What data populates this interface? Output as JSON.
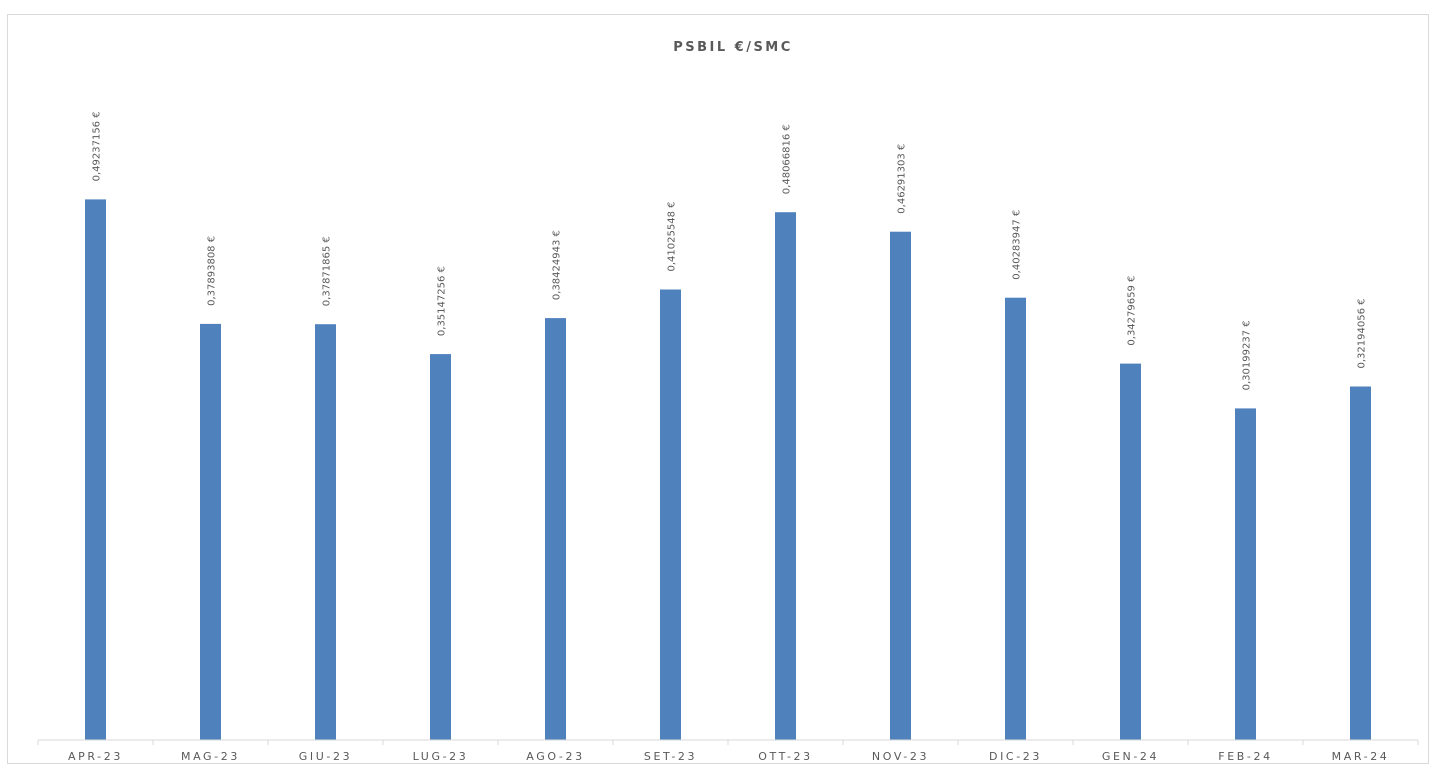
{
  "chart_data": {
    "type": "bar",
    "title": "PSBIL €/SMC",
    "xlabel": "",
    "ylabel": "",
    "categories": [
      "APR-23",
      "MAG-23",
      "GIU-23",
      "LUG-23",
      "AGO-23",
      "SET-23",
      "OTT-23",
      "NOV-23",
      "DIC-23",
      "GEN-24",
      "FEB-24",
      "MAR-24"
    ],
    "values": [
      0.49237156,
      0.37893808,
      0.37871865,
      0.35147256,
      0.38424943,
      0.41025548,
      0.48066816,
      0.46291303,
      0.40283947,
      0.34279659,
      0.30199237,
      0.32194056
    ],
    "data_labels": [
      "0,49237156 €",
      "0,37893808 €",
      "0,37871865 €",
      "0,35147256 €",
      "0,38424943 €",
      "0,41025548 €",
      "0,48066816 €",
      "0,46291303 €",
      "0,40283947 €",
      "0,34279659 €",
      "0,30199237 €",
      "0,32194056 €"
    ],
    "ylim": [
      0,
      0.6
    ],
    "grid": false,
    "legend": "none",
    "colors": {
      "bar": "#4f81bd",
      "axis": "#d9d9d9",
      "text": "#595959"
    }
  }
}
